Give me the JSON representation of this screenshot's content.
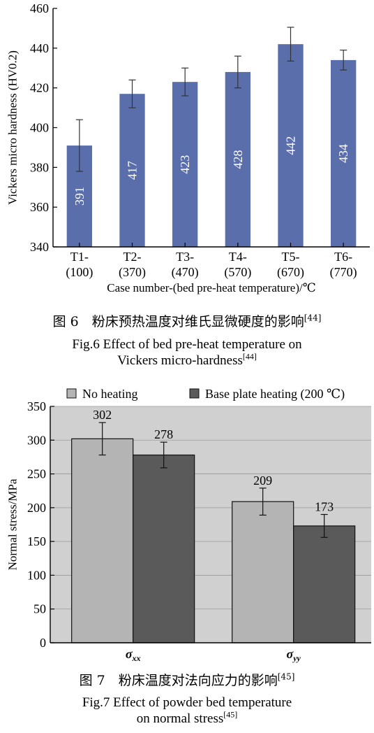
{
  "charts": [
    {
      "chart_data": {
        "type": "bar",
        "categories": [
          "T1-|(100)",
          "T2-|(370)",
          "T3-|(470)",
          "T4-|(570)",
          "T5-|(670)",
          "T6-|(770)"
        ],
        "values": [
          391,
          417,
          423,
          428,
          442,
          434
        ],
        "errors": [
          13,
          7,
          7,
          8,
          8.5,
          5
        ],
        "data_labels": [
          "391",
          "417",
          "423",
          "428",
          "442",
          "434"
        ],
        "xlabel": "Case number-(bed pre-heat temperature)/℃",
        "ylabel": "Vickers micro hardness (HV0.2)",
        "ylim": [
          340,
          460
        ],
        "yticks": [
          340,
          360,
          380,
          400,
          420,
          440,
          460
        ],
        "bar_color": "#5b6eac",
        "grid": false,
        "legend": "none"
      },
      "caption_cn": "图 6　粉床预热温度对维氏显微硬度的影响",
      "caption_cn_ref": "[44]",
      "caption_en_line1": "Fig.6 Effect of bed pre-heat temperature on",
      "caption_en_line2": "Vickers micro-hardness",
      "caption_en_ref": "[44]"
    },
    {
      "chart_data": {
        "type": "bar",
        "categories": [
          "σxx",
          "σyy"
        ],
        "series": [
          {
            "name": "No heating",
            "values": [
              302,
              209
            ],
            "errors": [
              24,
              20
            ],
            "color": "#b4b4b4"
          },
          {
            "name": "Base plate heating (200 ℃)",
            "values": [
              278,
              173
            ],
            "errors": [
              19,
              17
            ],
            "color": "#5a5a5a"
          }
        ],
        "data_labels": [
          [
            "302",
            "209"
          ],
          [
            "278",
            "173"
          ]
        ],
        "ylabel": "Normal stress/MPa",
        "ylim": [
          0,
          350
        ],
        "yticks": [
          0,
          50,
          100,
          150,
          200,
          250,
          300,
          350
        ],
        "plot_background": "#d0d0d0",
        "grid": true,
        "legend": "top"
      },
      "caption_cn": "图 7　粉床温度对法向应力的影响",
      "caption_cn_ref": "[45]",
      "caption_en_line1": "Fig.7 Effect of powder bed temperature",
      "caption_en_line2": "on normal stress",
      "caption_en_ref": "[45]"
    }
  ]
}
